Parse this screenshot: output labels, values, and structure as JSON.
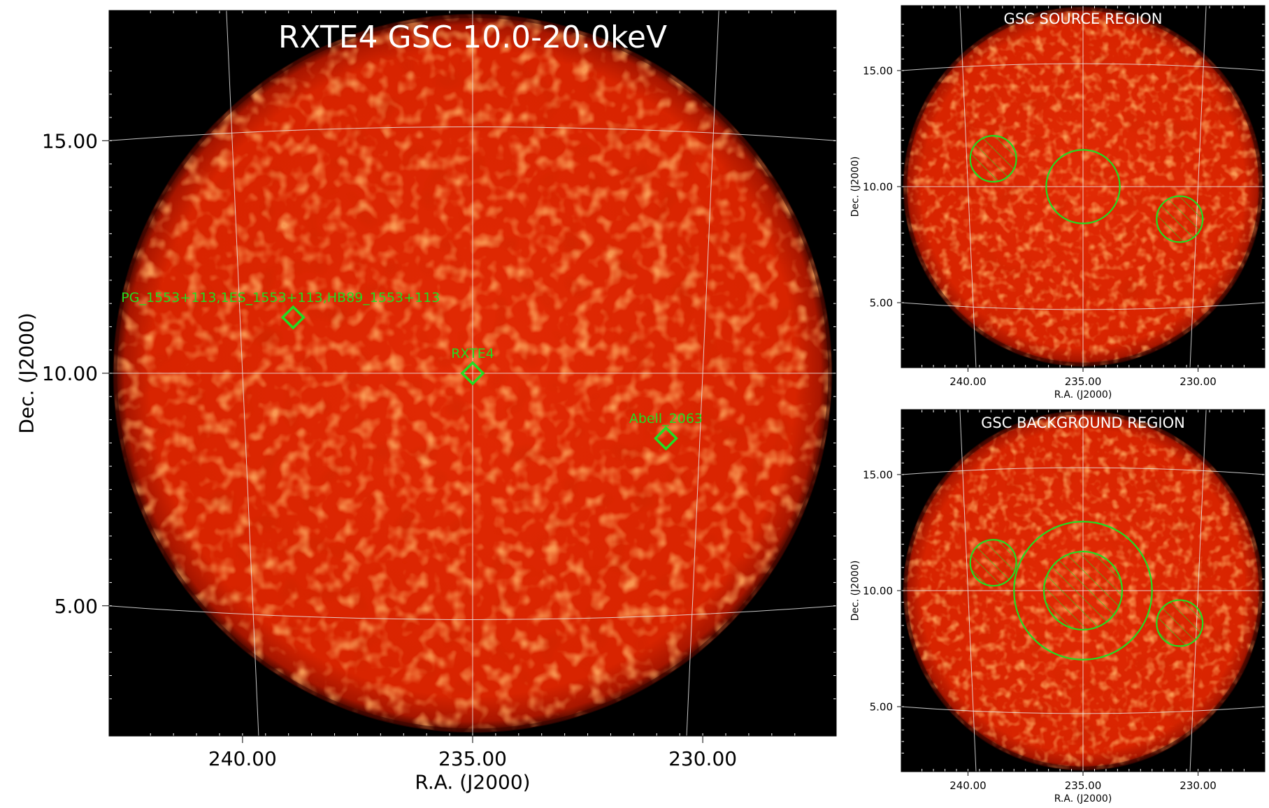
{
  "colors": {
    "sky_bright": "#ff3a08",
    "sky_mid": "#d92000",
    "sky_dark": "#8a0d00",
    "background": "#000000",
    "grid": "#e8e8e8",
    "region": "#22dd22",
    "title_text": "#ffffff"
  },
  "chart_data": [
    {
      "type": "heatmap",
      "name": "main-image",
      "title": "RXTE4 GSC 10.0-20.0keV",
      "xlabel": "R.A. (J2000)",
      "ylabel": "Dec. (J2000)",
      "xticks": [
        "240.00",
        "235.00",
        "230.00"
      ],
      "yticks": [
        "15.00",
        "10.00",
        "5.00"
      ],
      "xlim": [
        242.9,
        227.1
      ],
      "ylim": [
        2.2,
        17.8
      ],
      "field_center": {
        "ra": 235.0,
        "dec": 10.0
      },
      "field_radius_deg": 7.8,
      "sources": [
        {
          "label": "PG_1553+113,1ES_1553+113,HB89_1553+113",
          "ra": 238.9,
          "dec": 11.2
        },
        {
          "label": "RXTE4",
          "ra": 235.0,
          "dec": 10.0
        },
        {
          "label": "Abell_2063",
          "ra": 230.8,
          "dec": 8.6
        }
      ]
    },
    {
      "type": "heatmap",
      "name": "source-region",
      "title": "GSC SOURCE REGION",
      "xlabel": "R.A. (J2000)",
      "ylabel": "Dec. (J2000)",
      "xticks": [
        "240.00",
        "235.00",
        "230.00"
      ],
      "yticks": [
        "15.00",
        "10.00",
        "5.00"
      ],
      "xlim": [
        242.9,
        227.1
      ],
      "ylim": [
        2.2,
        17.8
      ],
      "regions": [
        {
          "kind": "include",
          "ra": 235.0,
          "dec": 10.0,
          "radius_deg": 1.6,
          "hatched": false
        },
        {
          "kind": "exclude",
          "ra": 238.9,
          "dec": 11.2,
          "radius_deg": 1.0,
          "hatched": true
        },
        {
          "kind": "exclude",
          "ra": 230.8,
          "dec": 8.6,
          "radius_deg": 1.0,
          "hatched": true
        }
      ]
    },
    {
      "type": "heatmap",
      "name": "background-region",
      "title": "GSC BACKGROUND REGION",
      "xlabel": "R.A. (J2000)",
      "ylabel": "Dec. (J2000)",
      "xticks": [
        "240.00",
        "235.00",
        "230.00"
      ],
      "yticks": [
        "15.00",
        "10.00",
        "5.00"
      ],
      "xlim": [
        242.9,
        227.1
      ],
      "ylim": [
        2.2,
        17.8
      ],
      "regions": [
        {
          "kind": "include",
          "ra": 235.0,
          "dec": 10.0,
          "radius_deg": 3.0,
          "hatched": false
        },
        {
          "kind": "exclude",
          "ra": 235.0,
          "dec": 10.0,
          "radius_deg": 1.7,
          "hatched": true
        },
        {
          "kind": "exclude",
          "ra": 238.9,
          "dec": 11.2,
          "radius_deg": 1.0,
          "hatched": true
        },
        {
          "kind": "exclude",
          "ra": 230.8,
          "dec": 8.6,
          "radius_deg": 1.0,
          "hatched": true
        }
      ]
    }
  ]
}
